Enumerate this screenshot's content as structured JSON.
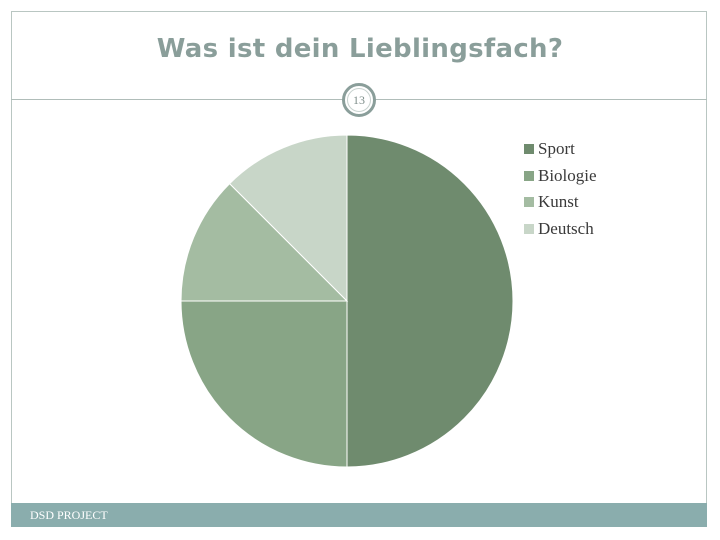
{
  "slide": {
    "title": "Was ist dein Lieblingsfach?",
    "page_number": "13",
    "footer": "DSD PROJECT"
  },
  "colors": {
    "accent": "#8a9e9a",
    "footer_bar": "#8aadad"
  },
  "chart_data": {
    "type": "pie",
    "title": "",
    "categories": [
      "Sport",
      "Biologie",
      "Kunst",
      "Deutsch"
    ],
    "values": [
      50,
      25,
      12.5,
      12.5
    ],
    "colors": [
      "#6f8b6e",
      "#88a586",
      "#a4bca2",
      "#c8d6c8"
    ],
    "start_angle_deg": 0,
    "direction": "clockwise",
    "legend": "right"
  }
}
